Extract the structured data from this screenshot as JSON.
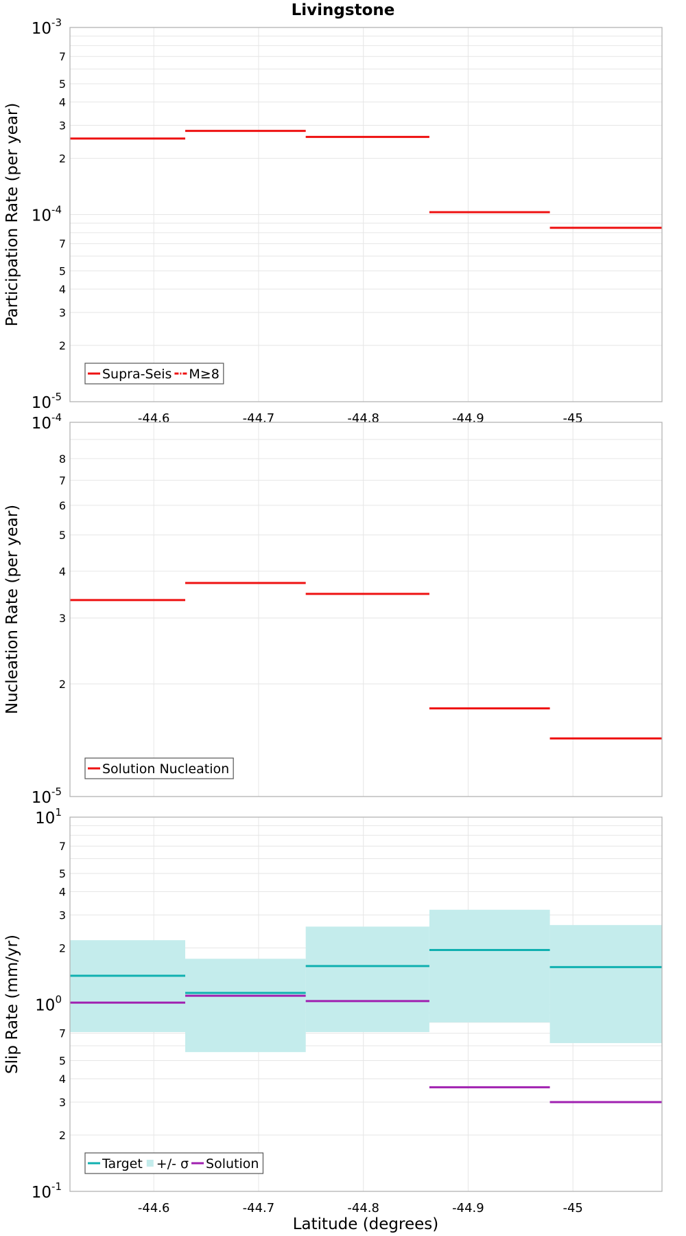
{
  "title": "Livingstone",
  "xlabel": "Latitude (degrees)",
  "colors": {
    "red": "#ee1111",
    "target": "#10b0b0",
    "band": "#c4ecec",
    "solution": "#a020b0",
    "grid": "#e6e6e6",
    "frame": "#b4b4b4"
  },
  "chart_data": [
    {
      "type": "line",
      "ylabel": "Participation Rate (per year)",
      "yscale": "log",
      "xlim": [
        -44.52,
        -45.085
      ],
      "ylim": [
        1e-05,
        0.001
      ],
      "x_ticks": [
        -44.6,
        -44.7,
        -44.8,
        -44.9,
        -45
      ],
      "x_tick_labels": [
        "-44.6",
        "-44.7",
        "-44.8",
        "-44.9",
        "-45"
      ],
      "bin_edges": [
        -44.52,
        -44.63,
        -44.745,
        -44.863,
        -44.978,
        -45.085
      ],
      "y_major_labels": [
        {
          "value": 0.001,
          "base": "10",
          "exp": "-3"
        },
        {
          "value": 0.0001,
          "base": "10",
          "exp": "-4"
        },
        {
          "value": 1e-05,
          "base": "10",
          "exp": "-5"
        }
      ],
      "y_minor_labels": [
        {
          "value": 0.0007,
          "label": "7"
        },
        {
          "value": 0.0005,
          "label": "5"
        },
        {
          "value": 0.0004,
          "label": "4"
        },
        {
          "value": 0.0003,
          "label": "3"
        },
        {
          "value": 0.0002,
          "label": "2"
        },
        {
          "value": 7e-05,
          "label": "7"
        },
        {
          "value": 5e-05,
          "label": "5"
        },
        {
          "value": 4e-05,
          "label": "4"
        },
        {
          "value": 3e-05,
          "label": "3"
        },
        {
          "value": 2e-05,
          "label": "2"
        }
      ],
      "series": [
        {
          "name": "Supra-Seis",
          "style": "solid",
          "color_key": "red",
          "values": [
            0.000255,
            0.00028,
            0.00026,
            0.000103,
            8.5e-05
          ]
        },
        {
          "name": "M≥8",
          "style": "dashdot",
          "color_key": "red",
          "values": []
        }
      ],
      "legend": [
        {
          "label": "Supra-Seis",
          "swatch": "line",
          "color_key": "red"
        },
        {
          "label": "M≥8",
          "swatch": "dashdot",
          "color_key": "red"
        }
      ],
      "legend_position": "bottom-left"
    },
    {
      "type": "line",
      "ylabel": "Nucleation Rate (per year)",
      "yscale": "log",
      "xlim": [
        -44.52,
        -45.085
      ],
      "ylim": [
        1e-05,
        0.0001
      ],
      "x_ticks": [
        -44.6,
        -44.7,
        -44.8,
        -44.9,
        -45
      ],
      "x_tick_labels": [],
      "bin_edges": [
        -44.52,
        -44.63,
        -44.745,
        -44.863,
        -44.978,
        -45.085
      ],
      "y_major_labels": [
        {
          "value": 0.0001,
          "base": "10",
          "exp": "-4"
        },
        {
          "value": 1e-05,
          "base": "10",
          "exp": "-5"
        }
      ],
      "y_minor_labels": [
        {
          "value": 8e-05,
          "label": "8"
        },
        {
          "value": 7e-05,
          "label": "7"
        },
        {
          "value": 6e-05,
          "label": "6"
        },
        {
          "value": 5e-05,
          "label": "5"
        },
        {
          "value": 4e-05,
          "label": "4"
        },
        {
          "value": 3e-05,
          "label": "3"
        },
        {
          "value": 2e-05,
          "label": "2"
        }
      ],
      "series": [
        {
          "name": "Solution Nucleation",
          "style": "solid",
          "color_key": "red",
          "values": [
            3.35e-05,
            3.72e-05,
            3.48e-05,
            1.72e-05,
            1.43e-05
          ]
        }
      ],
      "legend": [
        {
          "label": "Solution Nucleation",
          "swatch": "line",
          "color_key": "red"
        }
      ],
      "legend_position": "bottom-left"
    },
    {
      "type": "line",
      "ylabel": "Slip Rate (mm/yr)",
      "yscale": "log",
      "xlim": [
        -44.52,
        -45.085
      ],
      "ylim": [
        0.1,
        10
      ],
      "x_ticks": [
        -44.6,
        -44.7,
        -44.8,
        -44.9,
        -45
      ],
      "x_tick_labels": [
        "-44.6",
        "-44.7",
        "-44.8",
        "-44.9",
        "-45"
      ],
      "bin_edges": [
        -44.52,
        -44.63,
        -44.745,
        -44.863,
        -44.978,
        -45.085
      ],
      "y_major_labels": [
        {
          "value": 10,
          "base": "10",
          "exp": "1"
        },
        {
          "value": 1,
          "base": "10",
          "exp": "0"
        },
        {
          "value": 0.1,
          "base": "10",
          "exp": "-1"
        }
      ],
      "y_minor_labels": [
        {
          "value": 7,
          "label": "7"
        },
        {
          "value": 5,
          "label": "5"
        },
        {
          "value": 4,
          "label": "4"
        },
        {
          "value": 3,
          "label": "3"
        },
        {
          "value": 2,
          "label": "2"
        },
        {
          "value": 0.7,
          "label": "7"
        },
        {
          "value": 0.5,
          "label": "5"
        },
        {
          "value": 0.4,
          "label": "4"
        },
        {
          "value": 0.3,
          "label": "3"
        },
        {
          "value": 0.2,
          "label": "2"
        }
      ],
      "bands": [
        {
          "name": "+/- σ",
          "color_key": "band",
          "lower": [
            0.71,
            0.555,
            0.71,
            0.8,
            0.62
          ],
          "upper": [
            2.2,
            1.75,
            2.6,
            3.2,
            2.65
          ]
        }
      ],
      "series": [
        {
          "name": "Target",
          "style": "solid",
          "color_key": "target",
          "values": [
            1.42,
            1.15,
            1.6,
            1.95,
            1.58
          ]
        },
        {
          "name": "Solution",
          "style": "solid",
          "color_key": "solution",
          "values": [
            1.02,
            1.11,
            1.04,
            0.36,
            0.3
          ]
        }
      ],
      "legend": [
        {
          "label": "Target",
          "swatch": "line",
          "color_key": "target"
        },
        {
          "label": "+/- σ",
          "swatch": "box",
          "color_key": "band"
        },
        {
          "label": "Solution",
          "swatch": "line",
          "color_key": "solution"
        }
      ],
      "legend_position": "bottom-left"
    }
  ]
}
